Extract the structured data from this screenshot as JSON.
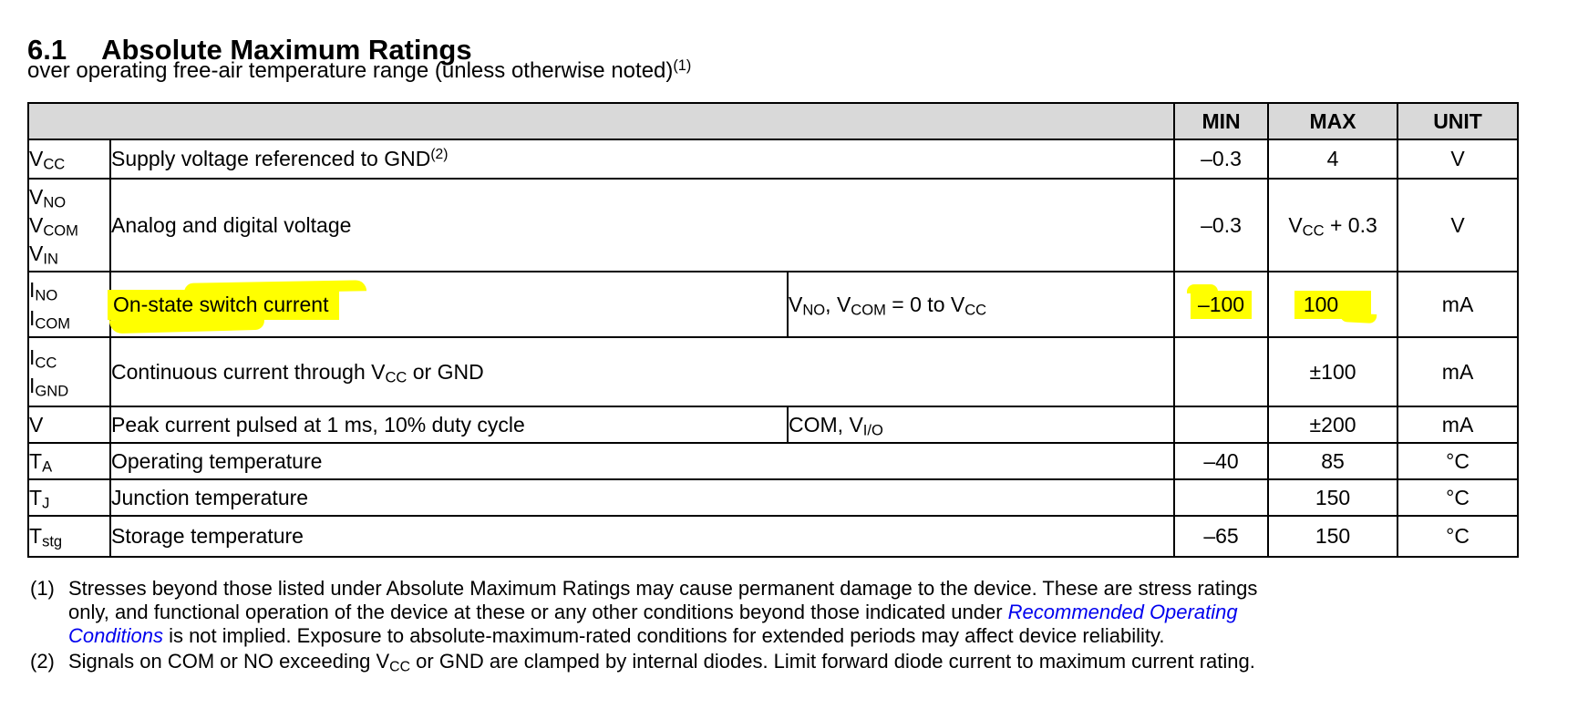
{
  "title": {
    "section": "6.1",
    "text": "Absolute Maximum Ratings"
  },
  "subtitle": {
    "text": "over operating free-air temperature range (unless otherwise noted)",
    "footnote_ref": "(1)"
  },
  "colors": {
    "highlight": "#ffff00",
    "header_bg": "#d9d9d9",
    "link": "#0000ee",
    "border": "#000000"
  },
  "table": {
    "header": {
      "min": "MIN",
      "max": "MAX",
      "unit": "UNIT"
    },
    "rows": [
      {
        "sym1_b": "V",
        "sym1_s": "CC",
        "desc_pre": "Supply voltage referenced to GND",
        "desc_sup": "(2)",
        "min": "–0.3",
        "max": "4",
        "unit": "V"
      },
      {
        "sym1_b": "V",
        "sym1_s": "NO",
        "sym2_b": "V",
        "sym2_s": "COM",
        "sym3_b": "V",
        "sym3_s": "IN",
        "desc": "Analog and digital voltage",
        "min": "–0.3",
        "max_pre": "V",
        "max_sub": "CC",
        "max_post": " + 0.3",
        "unit": "V"
      },
      {
        "sym1_b": "I",
        "sym1_s": "NO",
        "sym2_b": "I",
        "sym2_s": "COM",
        "desc": "On-state switch current",
        "cond_p1": "V",
        "cond_s1": "NO",
        "cond_p2": ", V",
        "cond_s2": "COM",
        "cond_p3": " = 0 to V",
        "cond_s3": "CC",
        "min": "–100",
        "max": "100",
        "unit": "mA"
      },
      {
        "sym1_b": "I",
        "sym1_s": "CC",
        "sym2_b": "I",
        "sym2_s": "GND",
        "desc_pre": "Continuous current through V",
        "desc_sub": "CC",
        "desc_post": " or GND",
        "min": "",
        "max": "±100",
        "unit": "mA"
      },
      {
        "sym1_b": "V",
        "sym1_s": "",
        "desc": "Peak current pulsed at 1 ms, 10% duty cycle",
        "cond_p1": "COM, V",
        "cond_s1": "I/O",
        "min": "",
        "max": "±200",
        "unit": "mA"
      },
      {
        "sym1_b": "T",
        "sym1_s": "A",
        "desc": "Operating temperature",
        "min": "–40",
        "max": "85",
        "unit": "°C"
      },
      {
        "sym1_b": "T",
        "sym1_s": "J",
        "desc": "Junction temperature",
        "min": "",
        "max": "150",
        "unit": "°C"
      },
      {
        "sym1_b": "T",
        "sym1_s": "stg",
        "desc": "Storage temperature",
        "min": "–65",
        "max": "150",
        "unit": "°C"
      }
    ]
  },
  "footnotes": {
    "fn1": {
      "marker": "(1)",
      "line1": "Stresses beyond those listed under Absolute Maximum Ratings may cause permanent damage to the device. These are stress ratings",
      "line2_pre": "only, and functional operation of the device at these or any other conditions beyond those indicated under ",
      "line2_link": "Recommended Operating",
      "line3_link": "Conditions",
      "line3_post": " is not implied. Exposure to absolute-maximum-rated conditions for extended periods may affect device reliability."
    },
    "fn2": {
      "marker": "(2)",
      "pre": "Signals on COM or NO exceeding V",
      "sub": "CC",
      "post": " or GND are clamped by internal diodes. Limit forward diode current to maximum current rating."
    }
  }
}
